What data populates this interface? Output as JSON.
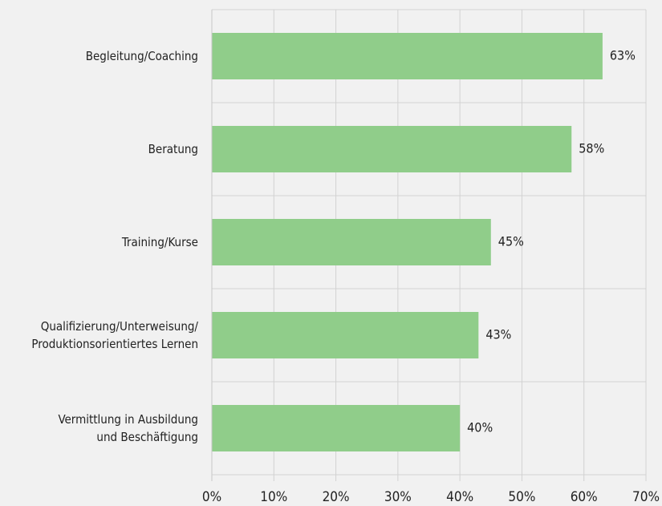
{
  "chart_data": {
    "type": "hbar",
    "categories": [
      "Begleitung/Coaching",
      "Beratung",
      "Training/Kurse",
      "Qualifizierung/Unterweisung/\nProduktionsorientiertes Lernen",
      "Vermittlung in Ausbildung\nund Beschäftigung"
    ],
    "values": [
      63,
      58,
      45,
      43,
      40
    ],
    "value_labels": [
      "63%",
      "58%",
      "45%",
      "43%",
      "40%"
    ],
    "color": "#90cd8a",
    "xlim": [
      0,
      70
    ],
    "xticks": [
      {
        "value": 0,
        "label": "0%"
      },
      {
        "value": 10,
        "label": "10%"
      },
      {
        "value": 20,
        "label": "20%"
      },
      {
        "value": 30,
        "label": "30%"
      },
      {
        "value": 40,
        "label": "40%"
      },
      {
        "value": 50,
        "label": "50%"
      },
      {
        "value": 60,
        "label": "60%"
      },
      {
        "value": 70,
        "label": "70%"
      }
    ],
    "grid": true
  }
}
